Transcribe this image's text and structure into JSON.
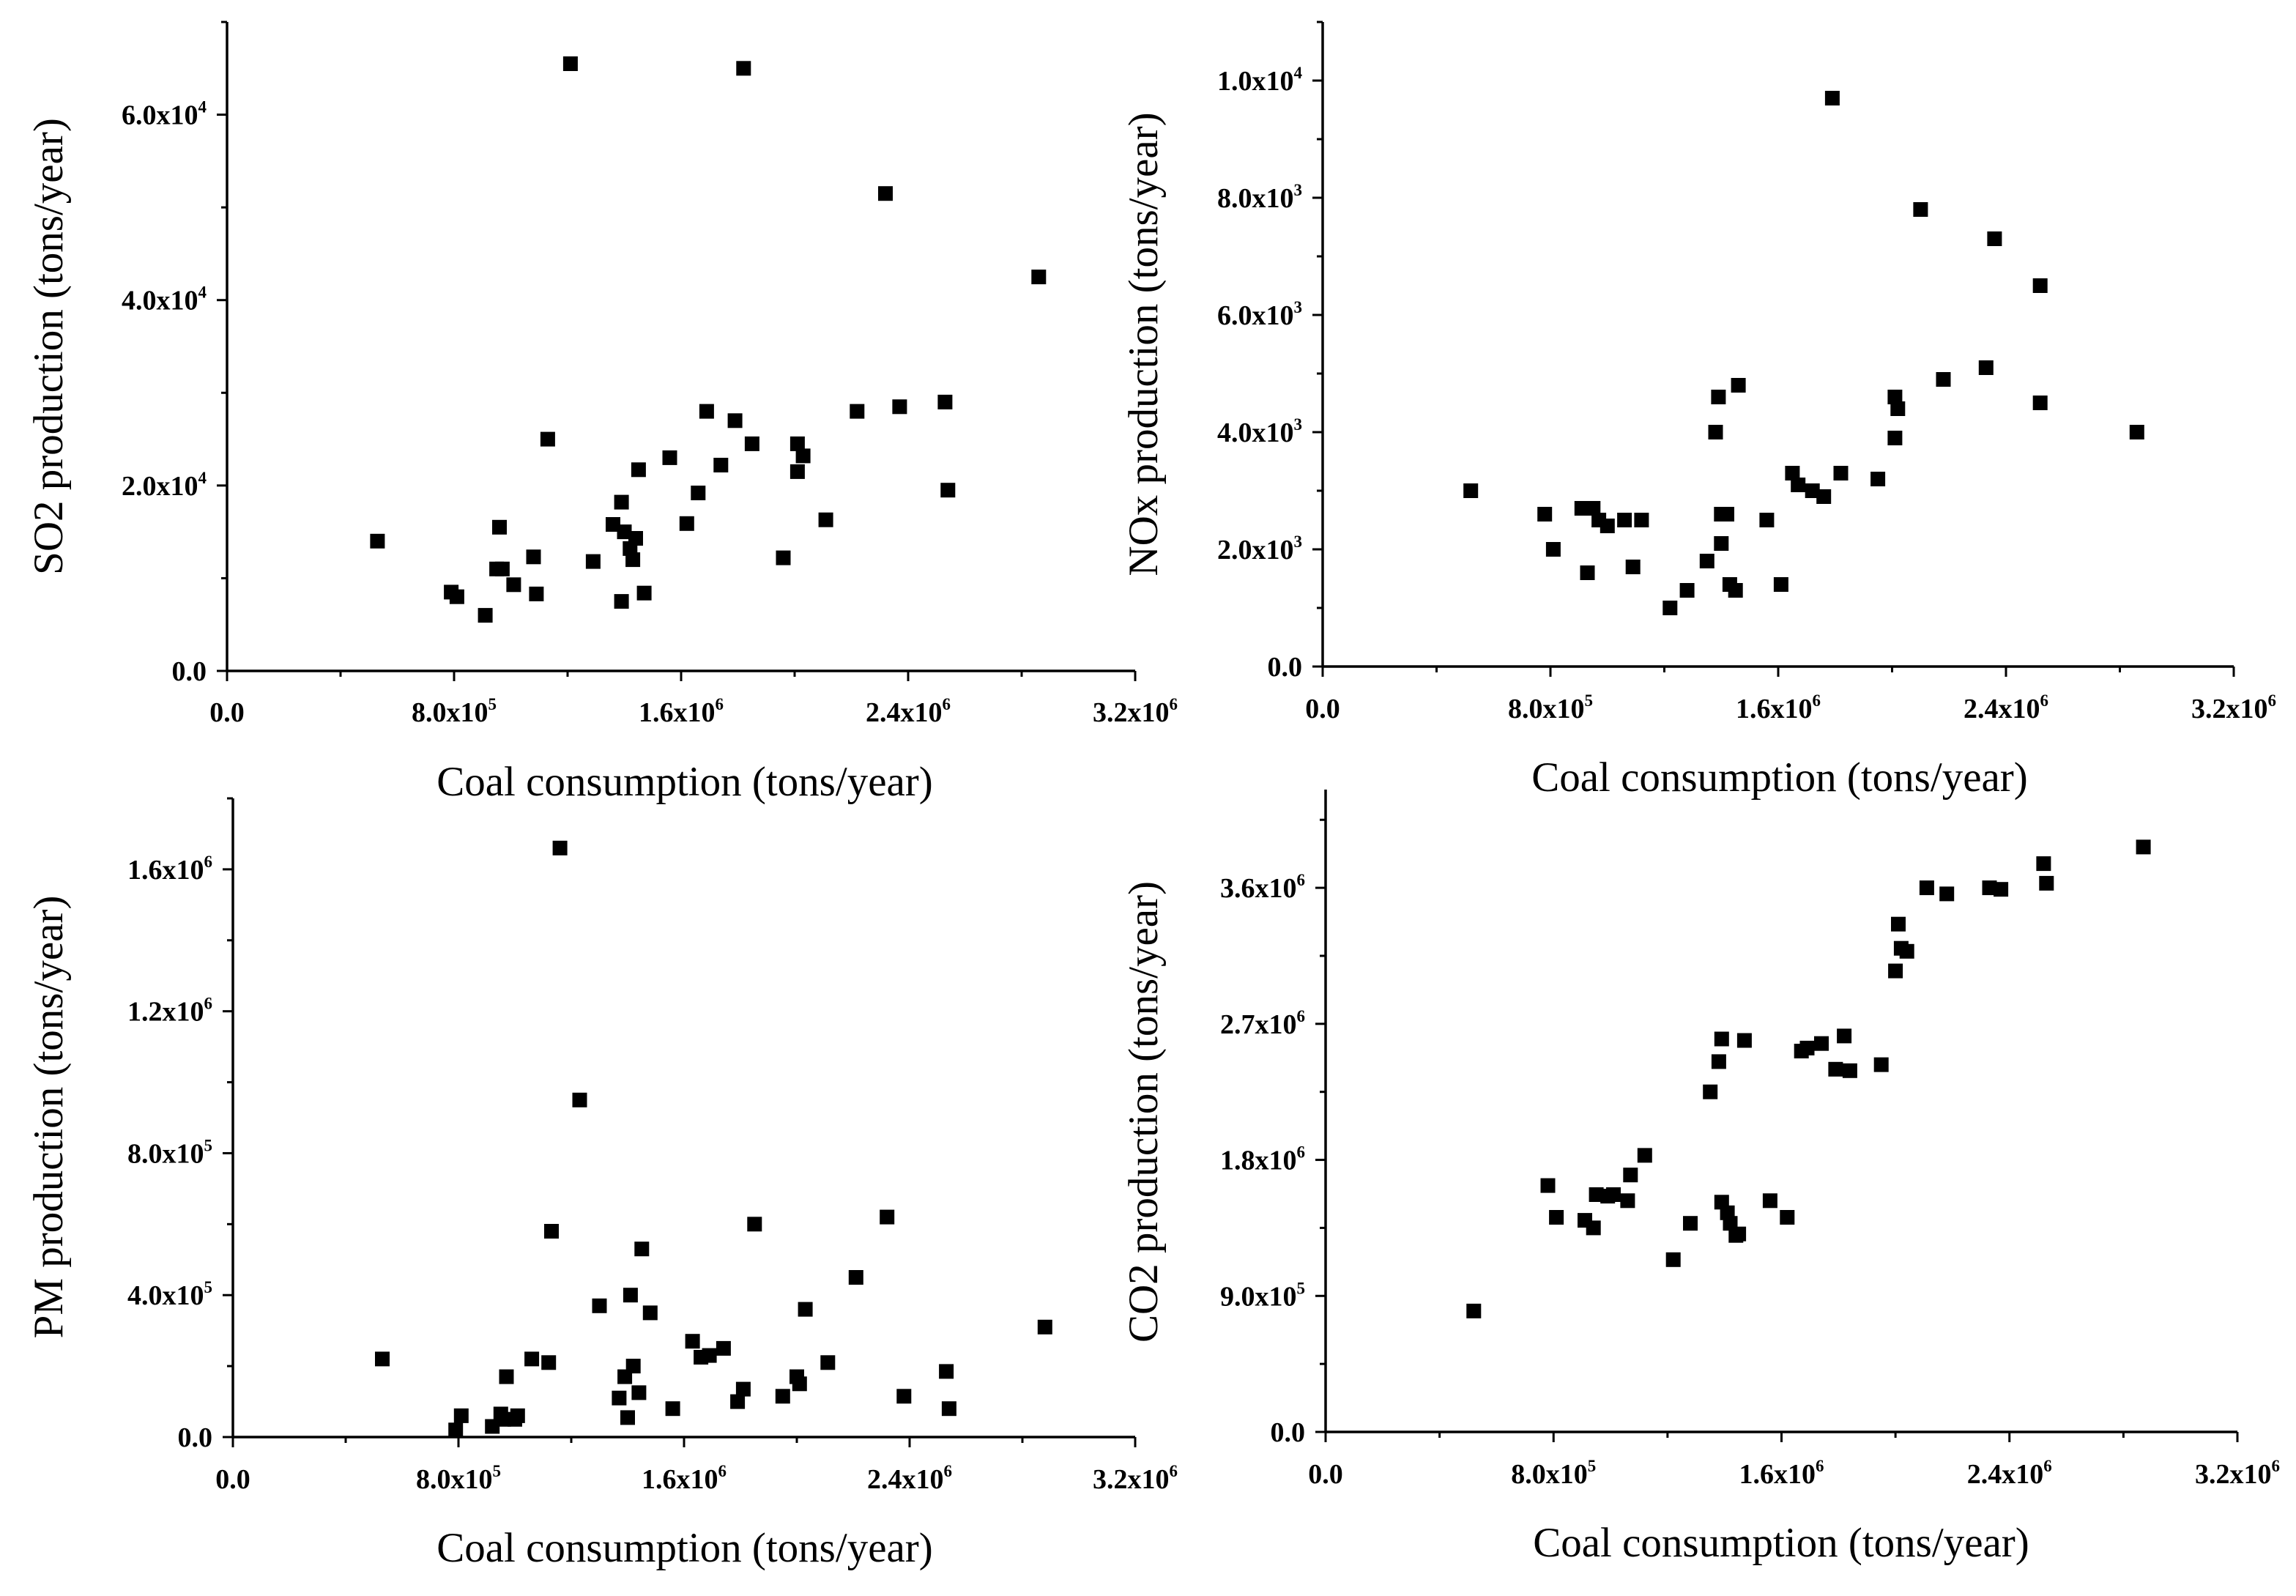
{
  "xlabel": "Coal consumption (tons/year)",
  "chart_data": [
    {
      "type": "scatter",
      "id": "so2",
      "title": "",
      "xlabel": "Coal consumption (tons/year)",
      "ylabel": "SO2 production (tons/year)",
      "xlim": [
        0,
        3200000
      ],
      "ylim": [
        0,
        70000
      ],
      "xticks": [
        0,
        800000,
        1600000,
        2400000,
        3200000
      ],
      "xtick_labels": [
        {
          "m": "0.0",
          "e": ""
        },
        {
          "m": "8.0x10",
          "e": "5"
        },
        {
          "m": "1.6x10",
          "e": "6"
        },
        {
          "m": "2.4x10",
          "e": "6"
        },
        {
          "m": "3.2x10",
          "e": "6"
        }
      ],
      "yticks": [
        0,
        20000,
        40000,
        60000
      ],
      "ytick_labels": [
        {
          "m": "0.0",
          "e": ""
        },
        {
          "m": "2.0x10",
          "e": "4"
        },
        {
          "m": "4.0x10",
          "e": "4"
        },
        {
          "m": "6.0x10",
          "e": "4"
        }
      ],
      "x": [
        530000,
        790000,
        810000,
        910000,
        950000,
        960000,
        970000,
        1010000,
        1080000,
        1090000,
        1130000,
        1210000,
        1290000,
        1360000,
        1390000,
        1390000,
        1400000,
        1420000,
        1430000,
        1440000,
        1450000,
        1470000,
        1560000,
        1620000,
        1660000,
        1690000,
        1740000,
        1790000,
        1820000,
        1850000,
        1960000,
        2010000,
        2010000,
        2030000,
        2110000,
        2220000,
        2320000,
        2370000,
        2530000,
        2540000,
        2860000
      ],
      "y": [
        14000,
        8500,
        8000,
        6000,
        11000,
        15500,
        11000,
        9300,
        12300,
        8300,
        25000,
        65500,
        11800,
        15800,
        7500,
        18200,
        15000,
        13200,
        12000,
        14300,
        21700,
        8400,
        23000,
        15900,
        19200,
        28000,
        22200,
        27000,
        65000,
        24500,
        12200,
        21500,
        24500,
        23200,
        16300,
        28000,
        51500,
        28500,
        29000,
        19500,
        42500
      ]
    },
    {
      "type": "scatter",
      "id": "nox",
      "title": "",
      "xlabel": "Coal consumption (tons/year)",
      "ylabel": "NOx production (tons/year)",
      "xlim": [
        0,
        3200000
      ],
      "ylim": [
        0,
        11000
      ],
      "xticks": [
        0,
        800000,
        1600000,
        2400000,
        3200000
      ],
      "xtick_labels": [
        {
          "m": "0.0",
          "e": ""
        },
        {
          "m": "8.0x10",
          "e": "5"
        },
        {
          "m": "1.6x10",
          "e": "6"
        },
        {
          "m": "2.4x10",
          "e": "6"
        },
        {
          "m": "3.2x10",
          "e": "6"
        }
      ],
      "yticks": [
        0,
        2000,
        4000,
        6000,
        8000,
        10000
      ],
      "ytick_labels": [
        {
          "m": "0.0",
          "e": ""
        },
        {
          "m": "2.0x10",
          "e": "3"
        },
        {
          "m": "4.0x10",
          "e": "3"
        },
        {
          "m": "6.0x10",
          "e": "3"
        },
        {
          "m": "8.0x10",
          "e": "3"
        },
        {
          "m": "1.0x10",
          "e": "4"
        }
      ],
      "x": [
        520000,
        780000,
        810000,
        910000,
        930000,
        950000,
        970000,
        1000000,
        1060000,
        1090000,
        1120000,
        1220000,
        1280000,
        1350000,
        1380000,
        1390000,
        1400000,
        1400000,
        1420000,
        1430000,
        1450000,
        1460000,
        1560000,
        1610000,
        1650000,
        1670000,
        1720000,
        1760000,
        1790000,
        1820000,
        1950000,
        2010000,
        2010000,
        2020000,
        2100000,
        2180000,
        2330000,
        2360000,
        2520000,
        2520000,
        2860000
      ],
      "y": [
        3000,
        2600,
        2000,
        2700,
        1600,
        2700,
        2500,
        2400,
        2500,
        1700,
        2500,
        1000,
        1300,
        1800,
        4000,
        4600,
        2600,
        2100,
        2600,
        1400,
        1300,
        4800,
        2500,
        1400,
        3300,
        3100,
        3000,
        2900,
        9700,
        3300,
        3200,
        3900,
        4600,
        4400,
        7800,
        4900,
        5100,
        7300,
        6500,
        4500,
        4000
      ]
    },
    {
      "type": "scatter",
      "id": "pm",
      "title": "",
      "xlabel": "Coal consumption (tons/year)",
      "ylabel": "PM production (tons/year)",
      "xlim": [
        0,
        3200000
      ],
      "ylim": [
        0,
        1800000
      ],
      "xticks": [
        0,
        800000,
        1600000,
        2400000,
        3200000
      ],
      "xtick_labels": [
        {
          "m": "0.0",
          "e": ""
        },
        {
          "m": "8.0x10",
          "e": "5"
        },
        {
          "m": "1.6x10",
          "e": "6"
        },
        {
          "m": "2.4x10",
          "e": "6"
        },
        {
          "m": "3.2x10",
          "e": "6"
        }
      ],
      "yticks": [
        0,
        400000,
        800000,
        1200000,
        1600000
      ],
      "ytick_labels": [
        {
          "m": "0.0",
          "e": ""
        },
        {
          "m": "4.0x10",
          "e": "5"
        },
        {
          "m": "8.0x10",
          "e": "5"
        },
        {
          "m": "1.2x10",
          "e": "6"
        },
        {
          "m": "1.6x10",
          "e": "6"
        }
      ],
      "x": [
        530000,
        790000,
        810000,
        920000,
        950000,
        960000,
        970000,
        1000000,
        1010000,
        1060000,
        1120000,
        1130000,
        1160000,
        1230000,
        1300000,
        1370000,
        1390000,
        1400000,
        1410000,
        1420000,
        1440000,
        1450000,
        1480000,
        1560000,
        1630000,
        1660000,
        1690000,
        1740000,
        1790000,
        1810000,
        1850000,
        1950000,
        2000000,
        2010000,
        2030000,
        2110000,
        2210000,
        2320000,
        2380000,
        2530000,
        2540000,
        2880000
      ],
      "y": [
        220000,
        20000,
        60000,
        30000,
        65000,
        50000,
        170000,
        50000,
        60000,
        220000,
        210000,
        580000,
        1660000,
        950000,
        370000,
        110000,
        170000,
        55000,
        400000,
        200000,
        125000,
        530000,
        350000,
        80000,
        270000,
        225000,
        230000,
        250000,
        100000,
        135000,
        600000,
        115000,
        170000,
        150000,
        360000,
        210000,
        450000,
        620000,
        115000,
        185000,
        80000,
        310000
      ]
    },
    {
      "type": "scatter",
      "id": "co2",
      "title": "",
      "xlabel": "Coal consumption (tons/year)",
      "ylabel": "CO2 production (tons/year)",
      "xlim": [
        0,
        3200000
      ],
      "ylim": [
        0,
        4250000
      ],
      "xticks": [
        0,
        800000,
        1600000,
        2400000,
        3200000
      ],
      "xtick_labels": [
        {
          "m": "0.0",
          "e": ""
        },
        {
          "m": "8.0x10",
          "e": "5"
        },
        {
          "m": "1.6x10",
          "e": "6"
        },
        {
          "m": "2.4x10",
          "e": "6"
        },
        {
          "m": "3.2x10",
          "e": "6"
        }
      ],
      "yticks": [
        0,
        900000,
        1800000,
        2700000,
        3600000
      ],
      "ytick_labels": [
        {
          "m": "0.0",
          "e": ""
        },
        {
          "m": "9.0x10",
          "e": "5"
        },
        {
          "m": "1.8x10",
          "e": "6"
        },
        {
          "m": "2.7x10",
          "e": "6"
        },
        {
          "m": "3.6x10",
          "e": "6"
        }
      ],
      "x": [
        520000,
        780000,
        810000,
        910000,
        940000,
        950000,
        990000,
        1010000,
        1060000,
        1070000,
        1120000,
        1220000,
        1280000,
        1350000,
        1380000,
        1390000,
        1390000,
        1410000,
        1420000,
        1440000,
        1450000,
        1470000,
        1560000,
        1620000,
        1670000,
        1690000,
        1740000,
        1790000,
        1820000,
        1840000,
        1950000,
        2000000,
        2010000,
        2020000,
        2040000,
        2110000,
        2180000,
        2330000,
        2370000,
        2520000,
        2530000,
        2870000
      ],
      "y": [
        800000,
        1630000,
        1420000,
        1400000,
        1350000,
        1570000,
        1560000,
        1570000,
        1530000,
        1700000,
        1830000,
        1140000,
        1380000,
        2250000,
        2450000,
        2600000,
        1520000,
        1450000,
        1380000,
        1300000,
        1310000,
        2590000,
        1530000,
        1420000,
        2520000,
        2540000,
        2570000,
        2400000,
        2620000,
        2390000,
        2430000,
        3050000,
        3360000,
        3200000,
        3180000,
        3600000,
        3560000,
        3600000,
        3590000,
        3760000,
        3630000,
        3870000
      ]
    }
  ]
}
